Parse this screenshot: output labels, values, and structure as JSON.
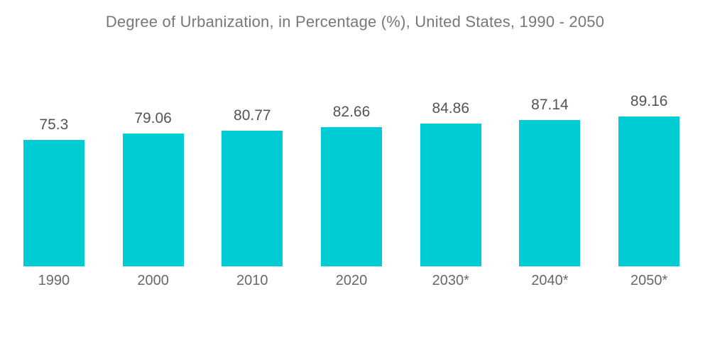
{
  "chart_data": {
    "type": "bar",
    "title": "Degree of Urbanization, in Percentage (%), United States, 1990 - 2050",
    "categories": [
      "1990",
      "2000",
      "2010",
      "2020",
      "2030*",
      "2040*",
      "2050*"
    ],
    "values": [
      75.3,
      79.06,
      80.77,
      82.66,
      84.86,
      87.14,
      89.16
    ],
    "value_labels": [
      "75.3",
      "79.06",
      "80.77",
      "82.66",
      "84.86",
      "87.14",
      "89.16"
    ],
    "xlabel": "",
    "ylabel": "",
    "ylim": [
      0,
      89.16
    ],
    "grid": false,
    "legend": "none",
    "axes_visible": false,
    "bar_color": "#00ccd4",
    "title_color": "#77787b",
    "value_label_color": "#545457",
    "category_label_color": "#67686b",
    "background_color": "#ffffff"
  }
}
